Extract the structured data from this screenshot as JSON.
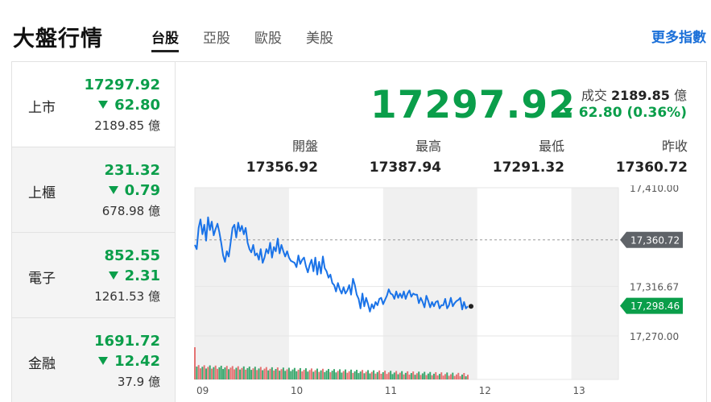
{
  "header": {
    "title": "大盤行情",
    "tabs": [
      {
        "label": "台股",
        "active": true
      },
      {
        "label": "亞股",
        "active": false
      },
      {
        "label": "歐股",
        "active": false
      },
      {
        "label": "美股",
        "active": false
      }
    ],
    "more_link": "更多指數"
  },
  "markets": [
    {
      "name": "上市",
      "index": "17297.92",
      "change": "62.80",
      "volume": "2189.85 億",
      "active": true
    },
    {
      "name": "上櫃",
      "index": "231.32",
      "change": "0.79",
      "volume": "678.98 億",
      "active": false
    },
    {
      "name": "電子",
      "index": "852.55",
      "change": "2.31",
      "volume": "1261.53 億",
      "active": false
    },
    {
      "name": "金融",
      "index": "1691.72",
      "change": "12.42",
      "volume": "37.9 億",
      "active": false
    }
  ],
  "quote": {
    "price": "17297.92",
    "volume_label": "成交",
    "volume_value": "2189.85",
    "volume_unit": "億",
    "change": "62.80 (0.36%)",
    "stats": [
      {
        "label": "開盤",
        "value": "17356.92"
      },
      {
        "label": "最高",
        "value": "17387.94"
      },
      {
        "label": "最低",
        "value": "17291.32"
      },
      {
        "label": "昨收",
        "value": "17360.72"
      }
    ]
  },
  "colors": {
    "up_down_green": "#0a9e4a",
    "line_blue": "#1a73e8",
    "link_blue": "#1a6fd8",
    "tag_gray": "#5f6368"
  },
  "chart_data": {
    "type": "line",
    "x_ticks": [
      "09",
      "10",
      "11",
      "12",
      "13"
    ],
    "y_ticks": [
      "17,410.00",
      "17,316.67",
      "17,270.00"
    ],
    "ylim": [
      17270,
      17410
    ],
    "reference_line": {
      "value": 17360.72,
      "label": "17,360.72"
    },
    "last_price_tag": {
      "value": 17298.46,
      "label": "17,298.46"
    },
    "series": [
      {
        "x": [
          9.0,
          9.02,
          9.04,
          9.06,
          9.08,
          9.1,
          9.12,
          9.14,
          9.16,
          9.18,
          9.2,
          9.22,
          9.24,
          9.26,
          9.28,
          9.3,
          9.32,
          9.34,
          9.36,
          9.38,
          9.4,
          9.42,
          9.44,
          9.46,
          9.48,
          9.5,
          9.52,
          9.54,
          9.56,
          9.58,
          9.6,
          9.62,
          9.64,
          9.66,
          9.68,
          9.7,
          9.72,
          9.74,
          9.76,
          9.78,
          9.8,
          9.82,
          9.84,
          9.86,
          9.88,
          9.9,
          9.92,
          9.94,
          9.96,
          9.98,
          10.0,
          10.02,
          10.04,
          10.06,
          10.08,
          10.1,
          10.12,
          10.14,
          10.16,
          10.18,
          10.2,
          10.22,
          10.24,
          10.26,
          10.28,
          10.3,
          10.32,
          10.34,
          10.36,
          10.38,
          10.4,
          10.42,
          10.44,
          10.46,
          10.48,
          10.5,
          10.52,
          10.54,
          10.56,
          10.58,
          10.6,
          10.62,
          10.64,
          10.66,
          10.68,
          10.7,
          10.72,
          10.74,
          10.76,
          10.78,
          10.8,
          10.82,
          10.84,
          10.86,
          10.88,
          10.9,
          10.92,
          10.94,
          10.96,
          10.98,
          11.0,
          11.02,
          11.04,
          11.06,
          11.08,
          11.1,
          11.12,
          11.14,
          11.16,
          11.18,
          11.2,
          11.22,
          11.24,
          11.26,
          11.28,
          11.3,
          11.32,
          11.34,
          11.36,
          11.38,
          11.4,
          11.42,
          11.44,
          11.46,
          11.48,
          11.5,
          11.52,
          11.54,
          11.56,
          11.58,
          11.6,
          11.62,
          11.64,
          11.66,
          11.68,
          11.7,
          11.72,
          11.74,
          11.76,
          11.78,
          11.8,
          11.82,
          11.84,
          11.86,
          11.88,
          11.9
        ],
        "values": [
          17356,
          17352,
          17372,
          17380,
          17366,
          17375,
          17360,
          17382,
          17370,
          17378,
          17365,
          17371,
          17376,
          17368,
          17358,
          17346,
          17340,
          17350,
          17345,
          17358,
          17372,
          17375,
          17363,
          17377,
          17369,
          17374,
          17366,
          17372,
          17358,
          17352,
          17349,
          17356,
          17346,
          17348,
          17342,
          17352,
          17339,
          17344,
          17352,
          17348,
          17358,
          17344,
          17354,
          17350,
          17362,
          17348,
          17356,
          17350,
          17345,
          17350,
          17344,
          17341,
          17340,
          17339,
          17335,
          17346,
          17338,
          17342,
          17344,
          17336,
          17330,
          17337,
          17342,
          17331,
          17344,
          17328,
          17340,
          17329,
          17345,
          17334,
          17331,
          17325,
          17328,
          17320,
          17318,
          17312,
          17320,
          17314,
          17310,
          17316,
          17310,
          17313,
          17318,
          17309,
          17324,
          17318,
          17309,
          17305,
          17296,
          17310,
          17298,
          17306,
          17300,
          17293,
          17300,
          17296,
          17302,
          17299,
          17305,
          17306,
          17300,
          17304,
          17308,
          17314,
          17310,
          17309,
          17305,
          17312,
          17306,
          17310,
          17306,
          17312,
          17305,
          17310,
          17313,
          17307,
          17310,
          17309,
          17309,
          17301,
          17306,
          17302,
          17297,
          17308,
          17303,
          17297,
          17302,
          17298,
          17302,
          17303,
          17296,
          17299,
          17299,
          17305,
          17296,
          17299,
          17306,
          17298,
          17301,
          17303,
          17304,
          17306,
          17295,
          17302,
          17296,
          17298
        ]
      }
    ]
  }
}
